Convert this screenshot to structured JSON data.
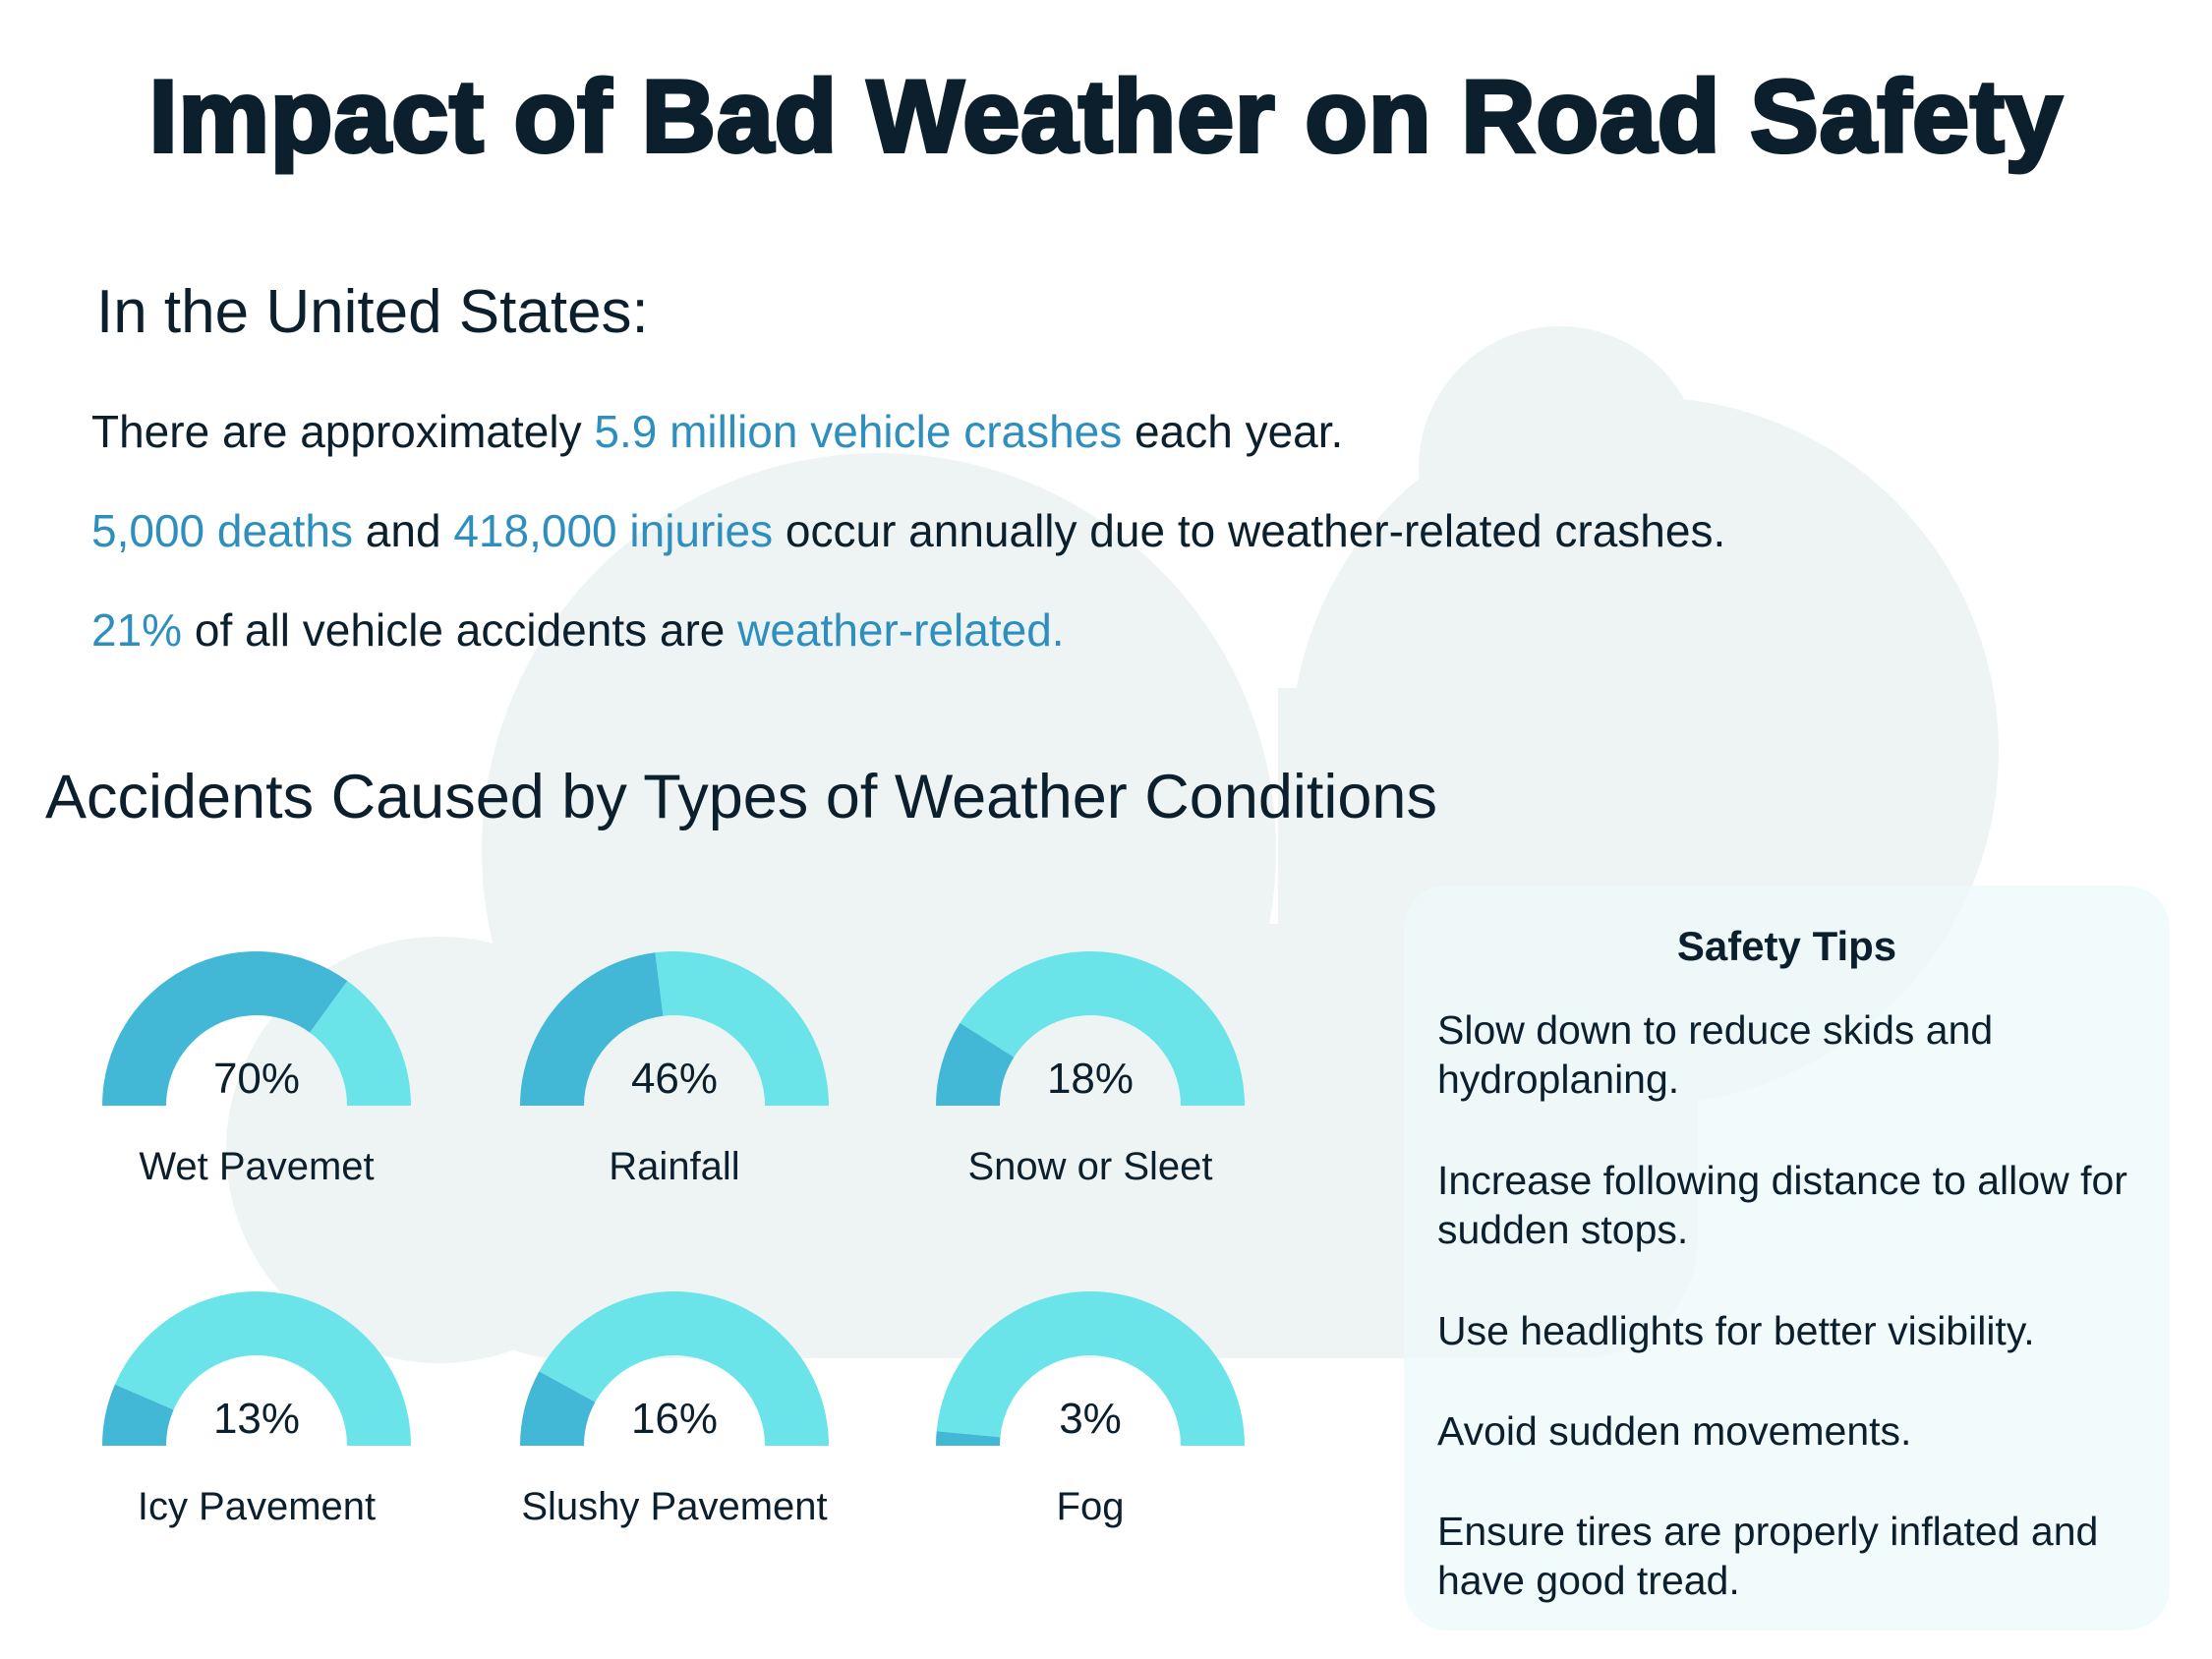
{
  "title": "Impact of Bad Weather on Road Safety",
  "subtitle": "In the United States:",
  "stats": [
    {
      "pre": "There are approximately ",
      "hl1": "5.9 million vehicle crashes",
      "mid": " each year.",
      "hl2": "",
      "post": ""
    },
    {
      "pre": "",
      "hl1": "5,000 deaths",
      "mid": " and ",
      "hl2": "418,000 injuries",
      "post": " occur annually due to weather-related crashes."
    },
    {
      "pre": "",
      "hl1": "21%",
      "mid": " of all vehicle accidents are ",
      "hl2": "weather-related.",
      "post": ""
    }
  ],
  "section_title": "Accidents Caused by Types of Weather Conditions",
  "colors": {
    "filled": "#42b7d6",
    "remaining": "#6ae4e8",
    "accent": "#2e8fbf",
    "cloud": "#eef4f4"
  },
  "chart_data": {
    "type": "gauge",
    "title": "Accidents Caused by Types of Weather Conditions",
    "categories": [
      "Wet Pavemet",
      "Rainfall",
      "Snow or Sleet",
      "Icy Pavement",
      "Slushy Pavement",
      "Fog"
    ],
    "values": [
      70,
      46,
      18,
      13,
      16,
      3
    ],
    "labels": [
      "70%",
      "46%",
      "18%",
      "13%",
      "16%",
      "3%"
    ],
    "unit": "%",
    "range": [
      0,
      100
    ]
  },
  "tips": {
    "title": "Safety Tips",
    "items": [
      "Slow down to reduce skids and hydroplaning.",
      "Increase following distance to allow for sudden stops.",
      "Use headlights for better visibility.",
      "Avoid sudden movements.",
      "Ensure tires are properly inflated and have good tread."
    ]
  }
}
